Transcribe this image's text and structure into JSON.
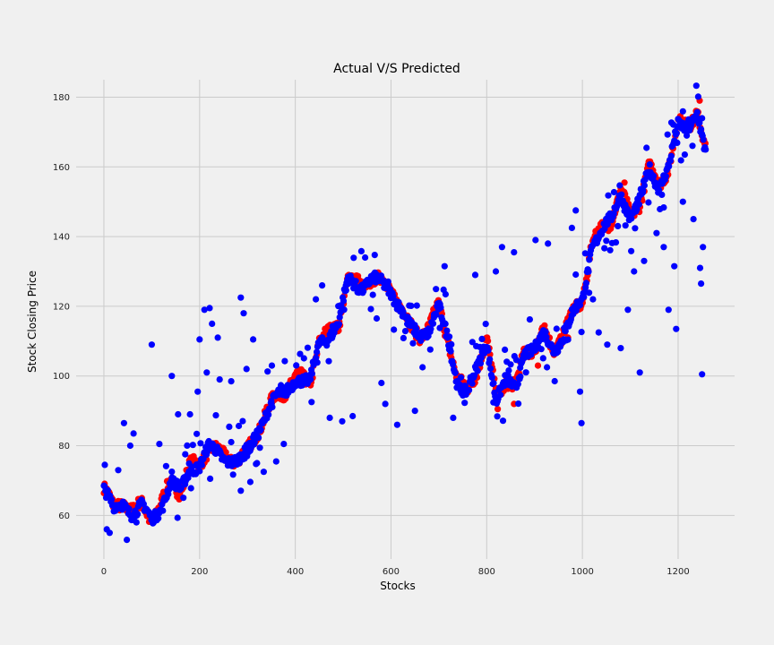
{
  "chart_data": {
    "type": "scatter",
    "title": "Actual V/S Predicted",
    "xlabel": "Stocks",
    "ylabel": "Stock Closing Price",
    "xlim": [
      -58,
      1318
    ],
    "ylim": [
      47.5,
      185
    ],
    "x_ticks": [
      0,
      200,
      400,
      600,
      800,
      1000,
      1200
    ],
    "y_ticks": [
      60,
      80,
      100,
      120,
      140,
      160,
      180
    ],
    "grid": true,
    "legend": "none",
    "colors": {
      "actual": "#ff0000",
      "predicted": "#0000ff",
      "grid": "#cbcbcb",
      "background": "#f0f0f0"
    },
    "actual_anchors": [
      [
        0,
        68
      ],
      [
        20,
        62
      ],
      [
        40,
        64
      ],
      [
        60,
        61
      ],
      [
        80,
        63
      ],
      [
        100,
        59
      ],
      [
        120,
        63
      ],
      [
        140,
        70
      ],
      [
        160,
        67
      ],
      [
        180,
        74
      ],
      [
        200,
        75
      ],
      [
        220,
        80
      ],
      [
        250,
        77
      ],
      [
        280,
        76
      ],
      [
        300,
        78
      ],
      [
        320,
        84
      ],
      [
        340,
        90
      ],
      [
        360,
        94
      ],
      [
        380,
        96
      ],
      [
        400,
        100
      ],
      [
        430,
        98
      ],
      [
        450,
        110
      ],
      [
        470,
        112
      ],
      [
        490,
        115
      ],
      [
        510,
        128
      ],
      [
        540,
        126
      ],
      [
        560,
        128
      ],
      [
        580,
        127
      ],
      [
        600,
        125
      ],
      [
        620,
        120
      ],
      [
        640,
        114
      ],
      [
        660,
        112
      ],
      [
        680,
        114
      ],
      [
        700,
        120
      ],
      [
        720,
        110
      ],
      [
        740,
        98
      ],
      [
        760,
        96
      ],
      [
        780,
        102
      ],
      [
        800,
        110
      ],
      [
        820,
        94
      ],
      [
        840,
        99
      ],
      [
        860,
        96
      ],
      [
        880,
        108
      ],
      [
        900,
        108
      ],
      [
        920,
        112
      ],
      [
        940,
        108
      ],
      [
        960,
        112
      ],
      [
        980,
        118
      ],
      [
        1000,
        122
      ],
      [
        1020,
        138
      ],
      [
        1040,
        142
      ],
      [
        1060,
        145
      ],
      [
        1080,
        153
      ],
      [
        1100,
        146
      ],
      [
        1120,
        150
      ],
      [
        1140,
        160
      ],
      [
        1160,
        155
      ],
      [
        1180,
        160
      ],
      [
        1200,
        172
      ],
      [
        1220,
        172
      ],
      [
        1240,
        176
      ],
      [
        1255,
        165
      ]
    ],
    "series": [
      {
        "name": "",
        "role": "actual",
        "color": "#ff0000",
        "outliers": [
          [
            823,
            90.5
          ],
          [
            857,
            92
          ],
          [
            907,
            103
          ],
          [
            970,
            111
          ],
          [
            1088,
            155.5
          ],
          [
            1245,
            179
          ]
        ]
      },
      {
        "name": "",
        "role": "predicted",
        "color": "#0000ff",
        "outliers": [
          [
            2,
            74.5
          ],
          [
            6,
            56
          ],
          [
            12,
            55
          ],
          [
            30,
            73
          ],
          [
            42,
            86.5
          ],
          [
            48,
            53
          ],
          [
            55,
            80
          ],
          [
            62,
            83.5
          ],
          [
            68,
            58
          ],
          [
            100,
            109
          ],
          [
            116,
            80.5
          ],
          [
            142,
            100
          ],
          [
            155,
            89
          ],
          [
            180,
            89
          ],
          [
            196,
            95.5
          ],
          [
            200,
            110.5
          ],
          [
            210,
            119
          ],
          [
            215,
            101
          ],
          [
            221,
            119.5
          ],
          [
            226,
            115
          ],
          [
            238,
            111
          ],
          [
            242,
            99
          ],
          [
            266,
            98.5
          ],
          [
            286,
            122.5
          ],
          [
            292,
            118
          ],
          [
            298,
            102
          ],
          [
            312,
            110.5
          ],
          [
            320,
            75
          ],
          [
            334,
            72.5
          ],
          [
            351,
            103
          ],
          [
            360,
            75.5
          ],
          [
            376,
            80.5
          ],
          [
            443,
            122
          ],
          [
            456,
            126
          ],
          [
            472,
            88
          ],
          [
            498,
            87
          ],
          [
            520,
            88.5
          ],
          [
            580,
            98
          ],
          [
            588,
            92
          ],
          [
            613,
            86
          ],
          [
            650,
            90
          ],
          [
            712,
            131.5
          ],
          [
            730,
            88
          ],
          [
            776,
            129
          ],
          [
            819,
            130
          ],
          [
            832,
            137
          ],
          [
            857,
            135.5
          ],
          [
            902,
            139
          ],
          [
            928,
            138
          ],
          [
            978,
            142.5
          ],
          [
            986,
            147.5
          ],
          [
            995,
            95.5
          ],
          [
            998,
            86.5
          ],
          [
            1022,
            122
          ],
          [
            1034,
            112.5
          ],
          [
            1052,
            109
          ],
          [
            1080,
            108
          ],
          [
            1095,
            119
          ],
          [
            1108,
            130
          ],
          [
            1120,
            101
          ],
          [
            1129,
            133
          ],
          [
            1155,
            141
          ],
          [
            1170,
            137
          ],
          [
            1180,
            119
          ],
          [
            1192,
            131.5
          ],
          [
            1196,
            113.5
          ],
          [
            1210,
            150
          ],
          [
            1232,
            145
          ],
          [
            1246,
            131
          ],
          [
            1248,
            126.5
          ],
          [
            1250,
            100.5
          ],
          [
            1252,
            137
          ]
        ]
      }
    ]
  }
}
